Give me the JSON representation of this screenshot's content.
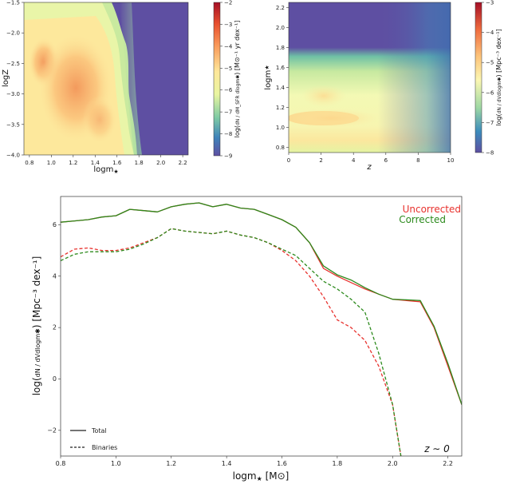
{
  "chart_data": [
    {
      "type": "heatmap",
      "title": "",
      "xlabel": "logm✱",
      "xlabel_text": "logm",
      "ylabel_text": "logZ",
      "xlim": [
        0.75,
        2.25
      ],
      "ylim": [
        -4.0,
        -1.5
      ],
      "xticks": [
        0.8,
        1.0,
        1.2,
        1.4,
        1.6,
        1.8,
        2.0,
        2.2
      ],
      "xtick_labels": [
        "0.8",
        "1.0",
        "1.2",
        "1.4",
        "1.6",
        "1.8",
        "2.0",
        "2.2"
      ],
      "yticks": [
        -1.5,
        -2.0,
        -2.5,
        -3.0,
        -3.5,
        -4.0
      ],
      "ytick_labels": [
        "−1.5",
        "−2.0",
        "−2.5",
        "−3.0",
        "−3.5",
        "−4.0"
      ],
      "colorbar": {
        "ticks": [
          -2,
          -3,
          -4,
          -5,
          -6,
          -7,
          -8,
          -9
        ],
        "tick_labels": [
          "−2",
          "−3",
          "−4",
          "−5",
          "−6",
          "−7",
          "−8",
          "−9"
        ],
        "label_frac": "dN / dM_SFR dlogm✱",
        "label_unit": "[M⊙⁻¹ yr dex⁻¹]"
      }
    },
    {
      "type": "heatmap",
      "title": "",
      "xlabel_text": "z",
      "ylabel_text": "logm",
      "xlim": [
        0,
        10
      ],
      "ylim": [
        0.75,
        2.25
      ],
      "xticks": [
        0,
        2,
        4,
        6,
        8,
        10
      ],
      "xtick_labels": [
        "0",
        "2",
        "4",
        "6",
        "8",
        "10"
      ],
      "yticks": [
        0.8,
        1.0,
        1.2,
        1.4,
        1.6,
        1.8,
        2.0,
        2.2
      ],
      "ytick_labels": [
        "0.8",
        "1.0",
        "1.2",
        "1.4",
        "1.6",
        "1.8",
        "2.0",
        "2.2"
      ],
      "colorbar": {
        "ticks": [
          -3,
          -4,
          -5,
          -6,
          -7,
          -8
        ],
        "tick_labels": [
          "−3",
          "−4",
          "−5",
          "−6",
          "−7",
          "−8"
        ],
        "label_frac": "dN / dVdlogm✱",
        "label_unit": "[Mpc⁻³ dex⁻¹]"
      }
    },
    {
      "type": "line",
      "xlabel_text": "logm",
      "xlabel_unit": "[M⊙]",
      "ylabel_frac": "dN / dVdlogm✱",
      "ylabel_unit": "[Mpc⁻³ dex⁻¹]",
      "xlim": [
        0.8,
        2.25
      ],
      "ylim": [
        -3.0,
        7.1
      ],
      "xticks": [
        0.8,
        1.0,
        1.2,
        1.4,
        1.6,
        1.8,
        2.0,
        2.2
      ],
      "xtick_labels": [
        "0.8",
        "1.0",
        "1.2",
        "1.4",
        "1.6",
        "1.8",
        "2.0",
        "2.2"
      ],
      "yticks": [
        6,
        4,
        2,
        0,
        -2
      ],
      "ytick_labels": [
        "6",
        "4",
        "2",
        "0",
        "−2"
      ],
      "legend_series": [
        "Uncorrected",
        "Corrected"
      ],
      "legend_series_colors": [
        "#e8322e",
        "#2c8a1c"
      ],
      "legend_styles": [
        "Total",
        "Binaries"
      ],
      "annotation": "z ∼ 0",
      "series": [
        {
          "name": "Uncorrected Total",
          "color": "#e8322e",
          "dash": false,
          "x": [
            0.8,
            0.85,
            0.9,
            0.95,
            1.0,
            1.05,
            1.1,
            1.15,
            1.2,
            1.25,
            1.3,
            1.35,
            1.4,
            1.45,
            1.5,
            1.55,
            1.6,
            1.65,
            1.7,
            1.75,
            1.8,
            1.85,
            1.9,
            1.95,
            2.0,
            2.05,
            2.1,
            2.15,
            2.2,
            2.25
          ],
          "y": [
            6.1,
            6.15,
            6.2,
            6.3,
            6.35,
            6.6,
            6.55,
            6.5,
            6.7,
            6.8,
            6.85,
            6.7,
            6.8,
            6.65,
            6.6,
            6.4,
            6.2,
            5.9,
            5.3,
            4.3,
            4.0,
            3.75,
            3.5,
            3.3,
            3.1,
            3.05,
            3.0,
            2.0,
            0.5,
            -1.0
          ]
        },
        {
          "name": "Corrected Total",
          "color": "#2c8a1c",
          "dash": false,
          "x": [
            0.8,
            0.85,
            0.9,
            0.95,
            1.0,
            1.05,
            1.1,
            1.15,
            1.2,
            1.25,
            1.3,
            1.35,
            1.4,
            1.45,
            1.5,
            1.55,
            1.6,
            1.65,
            1.7,
            1.75,
            1.8,
            1.85,
            1.9,
            1.95,
            2.0,
            2.05,
            2.1,
            2.15,
            2.2,
            2.25
          ],
          "y": [
            6.1,
            6.15,
            6.2,
            6.3,
            6.35,
            6.6,
            6.55,
            6.5,
            6.7,
            6.8,
            6.85,
            6.7,
            6.8,
            6.65,
            6.6,
            6.4,
            6.2,
            5.9,
            5.3,
            4.4,
            4.05,
            3.85,
            3.55,
            3.3,
            3.1,
            3.08,
            3.05,
            2.05,
            0.6,
            -1.0
          ]
        },
        {
          "name": "Uncorrected Binaries",
          "color": "#e8322e",
          "dash": true,
          "x": [
            0.8,
            0.85,
            0.9,
            0.95,
            1.0,
            1.05,
            1.1,
            1.15,
            1.2,
            1.25,
            1.3,
            1.35,
            1.4,
            1.45,
            1.5,
            1.55,
            1.6,
            1.65,
            1.7,
            1.75,
            1.8,
            1.85,
            1.9,
            1.95,
            2.0,
            2.03
          ],
          "y": [
            4.75,
            5.05,
            5.1,
            5.0,
            5.0,
            5.1,
            5.3,
            5.5,
            5.85,
            5.75,
            5.7,
            5.65,
            5.75,
            5.6,
            5.5,
            5.3,
            5.0,
            4.6,
            4.0,
            3.2,
            2.3,
            2.0,
            1.5,
            0.5,
            -1.0,
            -3.0
          ]
        },
        {
          "name": "Corrected Binaries",
          "color": "#2c8a1c",
          "dash": true,
          "x": [
            0.8,
            0.85,
            0.9,
            0.95,
            1.0,
            1.05,
            1.1,
            1.15,
            1.2,
            1.25,
            1.3,
            1.35,
            1.4,
            1.45,
            1.5,
            1.55,
            1.6,
            1.65,
            1.7,
            1.75,
            1.8,
            1.85,
            1.9,
            1.95,
            2.0,
            2.03
          ],
          "y": [
            4.6,
            4.85,
            4.95,
            4.95,
            4.95,
            5.05,
            5.25,
            5.5,
            5.85,
            5.75,
            5.7,
            5.65,
            5.75,
            5.6,
            5.5,
            5.3,
            5.05,
            4.8,
            4.3,
            3.8,
            3.5,
            3.1,
            2.6,
            1.0,
            -1.0,
            -3.0
          ]
        }
      ]
    }
  ]
}
